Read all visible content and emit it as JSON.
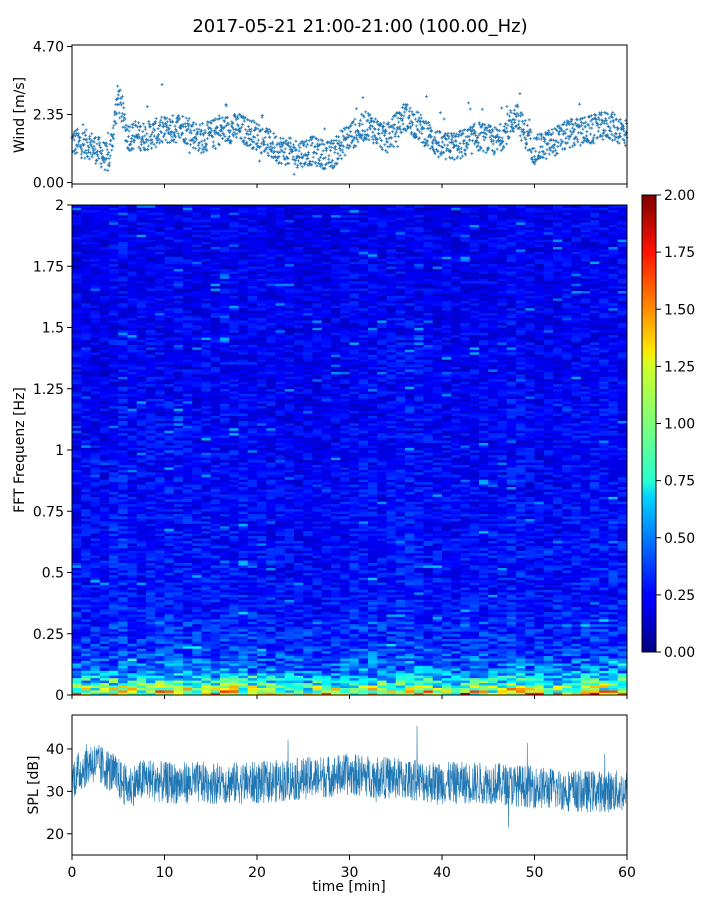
{
  "figure": {
    "title": "2017-05-21 21:00-21:00 (100.00_Hz)"
  },
  "chart_data": [
    {
      "name": "wind",
      "type": "scatter",
      "title": "",
      "xlabel": "",
      "ylabel": "Wind [m/s]",
      "xlim": [
        0,
        60
      ],
      "ylim": [
        -0.05,
        4.75
      ],
      "yticks": [
        0.0,
        2.35,
        4.7
      ],
      "ytick_labels": [
        "0.00",
        "2.35",
        "4.70"
      ],
      "grid": false,
      "color": "#1f77b4",
      "summary_x": [
        0,
        2,
        4,
        5,
        6,
        8,
        10,
        12,
        14,
        16,
        18,
        20,
        22,
        24,
        26,
        28,
        30,
        32,
        34,
        36,
        38,
        40,
        42,
        44,
        46,
        48,
        50,
        52,
        54,
        56,
        58,
        60
      ],
      "summary_y": [
        1.4,
        1.3,
        0.8,
        3.0,
        1.6,
        1.6,
        1.8,
        1.9,
        1.5,
        1.8,
        1.9,
        1.6,
        1.2,
        1.0,
        1.1,
        0.9,
        1.6,
        2.0,
        1.5,
        2.3,
        1.8,
        1.2,
        1.3,
        1.6,
        1.4,
        2.3,
        1.1,
        1.4,
        1.7,
        1.8,
        2.0,
        1.7
      ],
      "spread": 0.5,
      "points": 1800
    },
    {
      "name": "spectrogram",
      "type": "heatmap",
      "title": "",
      "xlabel": "",
      "ylabel": "FFT Frequenz [Hz]",
      "xlim": [
        0,
        60
      ],
      "ylim": [
        0,
        2
      ],
      "yticks": [
        0,
        0.25,
        0.5,
        0.75,
        1,
        1.25,
        1.5,
        1.75,
        2
      ],
      "ytick_labels": [
        "0",
        "0.25",
        "0.5",
        "0.75",
        "1",
        "1.25",
        "1.5",
        "1.75",
        "2"
      ],
      "colormap": "jet",
      "clim": [
        0.0,
        2.0
      ],
      "colorbar_ticks": [
        "0.00",
        "0.25",
        "0.50",
        "0.75",
        "1.00",
        "1.25",
        "1.50",
        "1.75",
        "2.00"
      ],
      "freq_profile": {
        "frequencies": [
          0,
          0.05,
          0.1,
          0.2,
          0.4,
          1.0,
          2.0
        ],
        "mean_values": [
          1.3,
          0.8,
          0.5,
          0.35,
          0.28,
          0.25,
          0.22
        ]
      }
    },
    {
      "name": "spl",
      "type": "line",
      "title": "",
      "xlabel": "time [min]",
      "ylabel": "SPL [dB]",
      "xlim": [
        0,
        60
      ],
      "ylim": [
        15,
        48
      ],
      "yticks": [
        20,
        30,
        40
      ],
      "ytick_labels": [
        "20",
        "30",
        "40"
      ],
      "xticks": [
        0,
        10,
        20,
        30,
        40,
        50,
        60
      ],
      "xtick_labels": [
        "0",
        "10",
        "20",
        "30",
        "40",
        "50",
        "60"
      ],
      "grid": false,
      "color": "#1f77b4",
      "envelope_x": [
        0,
        2,
        4,
        6,
        8,
        10,
        15,
        20,
        25,
        30,
        35,
        40,
        45,
        50,
        55,
        60
      ],
      "envelope_mean": [
        33,
        37,
        35,
        31,
        33,
        32,
        32,
        32,
        33,
        34,
        33,
        32,
        32,
        31,
        30,
        30
      ],
      "envelope_spread": 5
    }
  ]
}
